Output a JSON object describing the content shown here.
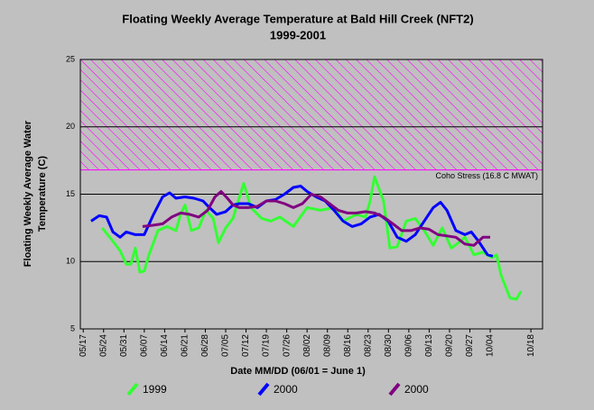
{
  "chart_data": {
    "type": "line",
    "title": [
      "Floating Weekly Average Temperature at Bald Hill Creek (NFT2)",
      "1999-2001"
    ],
    "x_label": "Date MM/DD (06/01 = June 1)",
    "y_label": [
      "Floating Weekly Average Water",
      "Temperature (C)"
    ],
    "xlim": [
      136,
      295
    ],
    "xticks": [
      {
        "value": 137,
        "label": "05/17"
      },
      {
        "value": 144,
        "label": "05/24"
      },
      {
        "value": 151,
        "label": "05/31"
      },
      {
        "value": 158,
        "label": "06/07"
      },
      {
        "value": 165,
        "label": "06/14"
      },
      {
        "value": 172,
        "label": "06/21"
      },
      {
        "value": 179,
        "label": "06/28"
      },
      {
        "value": 186,
        "label": "07/05"
      },
      {
        "value": 193,
        "label": "07/12"
      },
      {
        "value": 200,
        "label": "07/19"
      },
      {
        "value": 207,
        "label": "07/26"
      },
      {
        "value": 214,
        "label": "08/02"
      },
      {
        "value": 221,
        "label": "08/09"
      },
      {
        "value": 228,
        "label": "08/16"
      },
      {
        "value": 235,
        "label": "08/23"
      },
      {
        "value": 242,
        "label": "08/30"
      },
      {
        "value": 249,
        "label": "09/06"
      },
      {
        "value": 256,
        "label": "09/13"
      },
      {
        "value": 263,
        "label": "09/20"
      },
      {
        "value": 270,
        "label": "09/27"
      },
      {
        "value": 277,
        "label": "10/04"
      },
      {
        "value": 291,
        "label": "10/18"
      }
    ],
    "ylim": [
      5,
      25
    ],
    "yticks": [
      5,
      10,
      15,
      20,
      25
    ],
    "grid": true,
    "threshold": {
      "value": 16.8,
      "label": "Coho Stress (16.8 C MWAT)",
      "color": "#ff00ff"
    },
    "series": [
      {
        "name": "1999",
        "color": "#33ff33",
        "x": [
          143.5,
          147.2,
          149.7,
          151.8,
          153.4,
          154.9,
          156.5,
          158.0,
          159.6,
          162.7,
          165.8,
          168.9,
          170.5,
          172.0,
          174.2,
          176.7,
          179.2,
          181.7,
          183.5,
          186.0,
          188.5,
          190.3,
          192.2,
          194.7,
          198.4,
          201.5,
          204.6,
          209.3,
          214.0,
          218.6,
          223.3,
          226.4,
          231.0,
          234.1,
          235.7,
          237.2,
          240.3,
          242.5,
          245.0,
          248.1,
          251.2,
          254.3,
          257.4,
          260.5,
          263.6,
          266.7,
          268.3,
          271.4,
          274.5,
          277.6,
          279.2,
          280.7,
          283.8,
          286.0,
          287.6
        ],
        "values": [
          12.5,
          11.5,
          10.8,
          9.8,
          9.8,
          11.0,
          9.2,
          9.3,
          10.5,
          12.3,
          12.6,
          12.3,
          13.5,
          14.2,
          12.3,
          12.5,
          13.8,
          13.2,
          11.4,
          12.5,
          13.2,
          14.5,
          15.8,
          14.0,
          13.2,
          13.0,
          13.3,
          12.6,
          14.0,
          13.8,
          14.0,
          13.0,
          13.5,
          13.3,
          14.5,
          16.3,
          14.5,
          11.0,
          11.1,
          13.0,
          13.2,
          12.3,
          11.2,
          12.5,
          11.0,
          11.5,
          11.8,
          10.5,
          10.7,
          10.3,
          10.5,
          9.0,
          7.3,
          7.2,
          7.8
        ]
      },
      {
        "name": "2000",
        "color": "#0000ff",
        "x": [
          139.7,
          142.5,
          145.0,
          147.2,
          149.7,
          151.8,
          154.9,
          158.0,
          161.2,
          164.3,
          166.7,
          168.9,
          172.0,
          175.1,
          178.2,
          180.4,
          182.9,
          186.0,
          188.5,
          190.7,
          193.8,
          196.9,
          200.0,
          203.1,
          206.2,
          209.3,
          211.8,
          214.0,
          217.1,
          220.2,
          223.3,
          226.4,
          229.5,
          232.6,
          235.7,
          238.8,
          241.9,
          245.0,
          248.1,
          251.2,
          254.3,
          257.4,
          259.9,
          262.1,
          265.2,
          268.3,
          270.5,
          273.0,
          276.1,
          277.9
        ],
        "values": [
          13.0,
          13.4,
          13.3,
          12.2,
          11.8,
          12.2,
          12.0,
          12.0,
          13.5,
          14.8,
          15.1,
          14.7,
          14.8,
          14.7,
          14.5,
          14.0,
          13.5,
          13.7,
          14.2,
          14.3,
          14.3,
          14.0,
          14.5,
          14.6,
          15.0,
          15.5,
          15.6,
          15.2,
          14.8,
          14.5,
          13.8,
          13.0,
          12.6,
          12.8,
          13.3,
          13.5,
          13.0,
          11.8,
          11.5,
          12.0,
          13.0,
          14.0,
          14.4,
          13.8,
          12.3,
          12.0,
          12.2,
          11.5,
          10.5,
          10.4
        ]
      },
      {
        "name": "2000",
        "color": "#800080",
        "x": [
          157.4,
          161.2,
          164.3,
          167.4,
          170.5,
          173.6,
          176.7,
          179.8,
          182.3,
          184.4,
          186.6,
          188.5,
          190.7,
          193.8,
          196.9,
          200.0,
          203.1,
          206.2,
          209.3,
          212.4,
          215.5,
          218.6,
          221.7,
          224.8,
          227.9,
          231.0,
          234.1,
          237.2,
          240.3,
          243.5,
          246.6,
          249.7,
          252.8,
          255.9,
          259.0,
          262.1,
          265.2,
          268.3,
          271.4,
          274.5,
          277.0
        ],
        "values": [
          12.6,
          12.7,
          12.8,
          13.3,
          13.6,
          13.5,
          13.3,
          13.8,
          14.8,
          15.2,
          14.7,
          14.2,
          14.0,
          14.0,
          14.1,
          14.5,
          14.5,
          14.3,
          14.0,
          14.3,
          15.0,
          14.8,
          14.3,
          13.8,
          13.6,
          13.6,
          13.7,
          13.6,
          13.3,
          12.8,
          12.3,
          12.3,
          12.5,
          12.4,
          12.0,
          11.9,
          11.8,
          11.3,
          11.2,
          11.8,
          11.8
        ]
      }
    ]
  }
}
